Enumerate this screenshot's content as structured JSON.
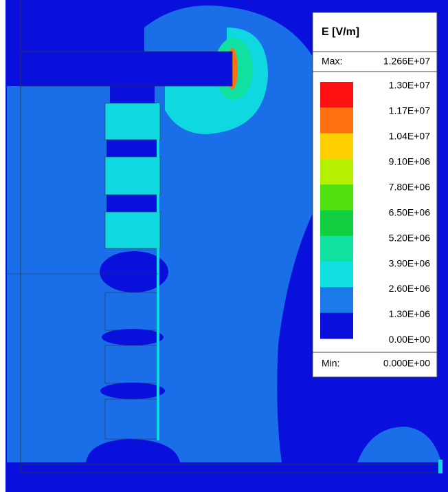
{
  "legend": {
    "title": "E [V/m]",
    "max_label": "Max:",
    "max_value": "1.266E+07",
    "levels": [
      "1.30E+07",
      "1.17E+07",
      "1.04E+07",
      "9.10E+06",
      "7.80E+06",
      "6.50E+06",
      "5.20E+06",
      "3.90E+06",
      "2.60E+06",
      "1.30E+06",
      "0.00E+00"
    ],
    "colors": [
      "#ff1010",
      "#ff7010",
      "#ffd000",
      "#b4f000",
      "#50e010",
      "#10d040",
      "#10e0a0",
      "#10e0e0",
      "#1a7ae8",
      "#0a10dc"
    ],
    "min_label": "Min:",
    "min_value": "0.000E+00"
  }
}
